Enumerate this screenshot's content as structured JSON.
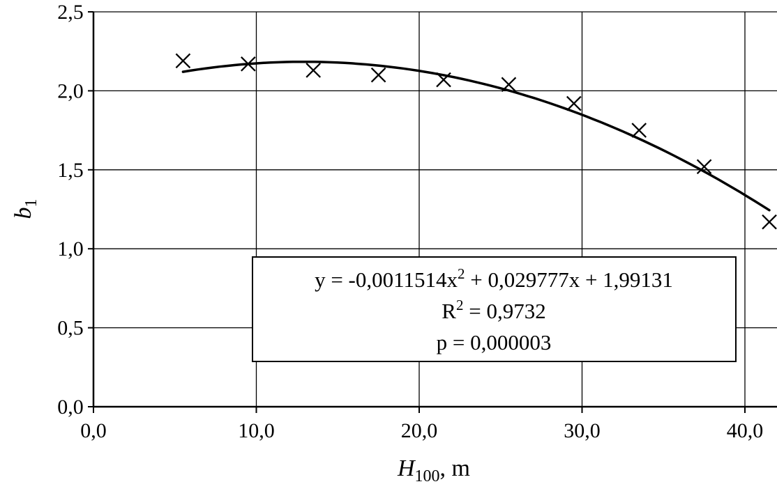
{
  "chart_data": {
    "type": "scatter",
    "title": "",
    "xlabel": {
      "main": "H",
      "sub": "100",
      "unit": ", m"
    },
    "ylabel": {
      "main": "b",
      "sub": "1"
    },
    "xlim": [
      0,
      42
    ],
    "ylim": [
      0,
      2.5
    ],
    "x_ticks": [
      {
        "value": 0,
        "label": "0,0"
      },
      {
        "value": 10,
        "label": "10,0"
      },
      {
        "value": 20,
        "label": "20,0"
      },
      {
        "value": 30,
        "label": "30,0"
      },
      {
        "value": 40,
        "label": "40,0"
      }
    ],
    "y_ticks": [
      {
        "value": 0,
        "label": "0,0"
      },
      {
        "value": 0.5,
        "label": "0,5"
      },
      {
        "value": 1.0,
        "label": "1,0"
      },
      {
        "value": 1.5,
        "label": "1,5"
      },
      {
        "value": 2.0,
        "label": "2,0"
      },
      {
        "value": 2.5,
        "label": "2,5"
      }
    ],
    "grid": true,
    "points": [
      {
        "x": 5.5,
        "y": 2.19
      },
      {
        "x": 9.5,
        "y": 2.17
      },
      {
        "x": 13.5,
        "y": 2.13
      },
      {
        "x": 17.5,
        "y": 2.1
      },
      {
        "x": 21.5,
        "y": 2.07
      },
      {
        "x": 25.5,
        "y": 2.04
      },
      {
        "x": 29.5,
        "y": 1.92
      },
      {
        "x": 33.5,
        "y": 1.75
      },
      {
        "x": 37.5,
        "y": 1.52
      },
      {
        "x": 41.5,
        "y": 1.17
      }
    ],
    "trendline": {
      "type": "polynomial",
      "coefficients": [
        1.99131,
        0.029777,
        -0.0011514
      ],
      "x_range": [
        5.5,
        41.5
      ]
    },
    "annotation": {
      "lines": [
        {
          "prefix": "y = -0,0011514x",
          "sup": "2",
          "suffix": "  + 0,029777x  + 1,99131"
        },
        {
          "prefix": "R",
          "sup": "2",
          "suffix": " = 0,9732"
        },
        {
          "prefix": "p = 0,000003",
          "sup": "",
          "suffix": ""
        }
      ]
    }
  }
}
